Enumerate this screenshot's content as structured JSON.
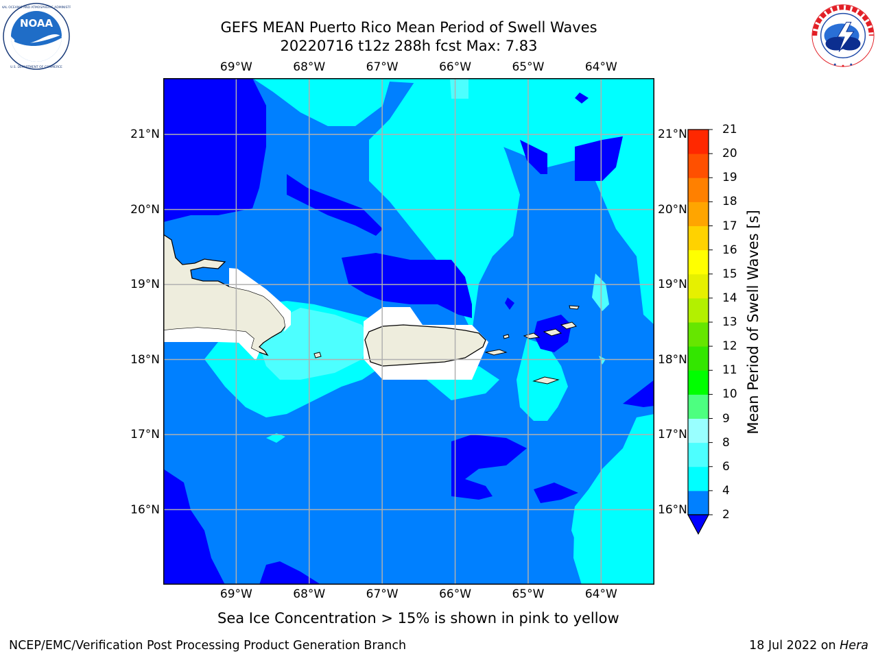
{
  "header": {
    "title_line1": "GEFS MEAN Puerto Rico Mean Period of Swell Waves",
    "title_line2": "20220716 t12z 288h fcst   Max: 7.83"
  },
  "logos": {
    "left": {
      "name": "NOAA",
      "text": "NOAA",
      "ring_text": "NATIONAL OCEANIC AND ATMOSPHERIC ADMINISTRATION · U.S. DEPARTMENT OF COMMERCE"
    },
    "right": {
      "name": "National Weather Service",
      "ring_text": "NATIONAL WEATHER SERVICE"
    }
  },
  "map": {
    "lon_ticks": [
      "69°W",
      "68°W",
      "67°W",
      "66°W",
      "65°W",
      "64°W"
    ],
    "lat_ticks": [
      "21°N",
      "20°N",
      "19°N",
      "18°N",
      "17°N",
      "16°N"
    ],
    "lon_values": [
      -69,
      -68,
      -67,
      -66,
      -65,
      -64
    ],
    "lat_values": [
      21,
      20,
      19,
      18,
      17,
      16
    ],
    "extent": {
      "lon": [
        -70,
        -63.27
      ],
      "lat": [
        15.0,
        21.75
      ]
    },
    "grid": true
  },
  "colorbar": {
    "title": "Mean Period of Swell Waves [s]",
    "labels": [
      "21",
      "20",
      "19",
      "18",
      "17",
      "16",
      "15",
      "14",
      "13",
      "12",
      "11",
      "10",
      "9",
      "8",
      "6",
      "4",
      "2"
    ],
    "levels": [
      2,
      4,
      6,
      8,
      9,
      10,
      11,
      12,
      13,
      14,
      15,
      16,
      17,
      18,
      19,
      20,
      21
    ],
    "colors": [
      "#0080ff",
      "#00ffff",
      "#4dffff",
      "#99ffff",
      "#4dff80",
      "#00ff00",
      "#33e600",
      "#66e600",
      "#b3f000",
      "#e6f000",
      "#ffff00",
      "#ffd200",
      "#ffa500",
      "#ff8000",
      "#ff5000",
      "#ff2800"
    ],
    "extend_color": "#0000ff"
  },
  "palette": {
    "land": "#eeeddd",
    "dark_blue": "#0000ff",
    "mid_blue": "#0080ff",
    "cyan": "#00ffff",
    "light_cyan": "#4dffff",
    "grid": "#b0b0b0"
  },
  "note": "Sea Ice Concentration > 15% is shown in pink to yellow",
  "footer": {
    "left": "NCEP/EMC/Verification Post Processing Product Generation Branch",
    "right_prefix": "18 Jul 2022 on ",
    "right_host": "Hera"
  }
}
